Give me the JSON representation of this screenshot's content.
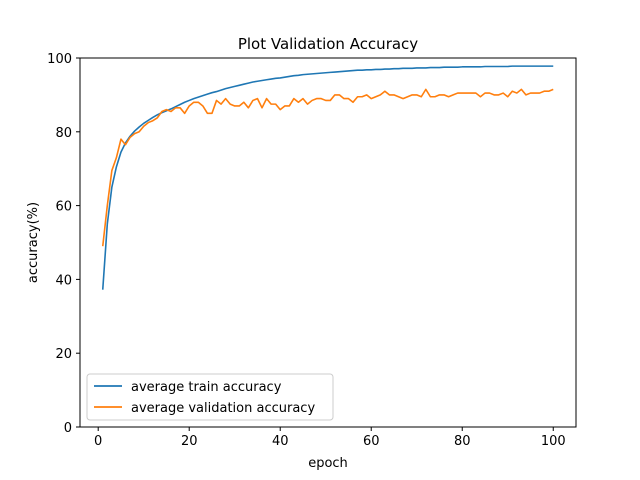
{
  "chart_data": {
    "type": "line",
    "title": "Plot Validation Accuracy",
    "xlabel": "epoch",
    "ylabel": "accuracy(%)",
    "xlim": [
      -4,
      105
    ],
    "ylim": [
      0,
      100
    ],
    "xticks": [
      0,
      20,
      40,
      60,
      80,
      100
    ],
    "yticks": [
      0,
      20,
      40,
      60,
      80,
      100
    ],
    "grid": false,
    "legend_position": "bottom-left",
    "series": [
      {
        "name": "average train accuracy",
        "color": "#1f77b4",
        "x": [
          1,
          2,
          3,
          4,
          5,
          6,
          7,
          8,
          9,
          10,
          11,
          12,
          13,
          14,
          15,
          16,
          17,
          18,
          19,
          20,
          21,
          22,
          23,
          24,
          25,
          26,
          27,
          28,
          29,
          30,
          31,
          32,
          33,
          34,
          35,
          36,
          37,
          38,
          39,
          40,
          41,
          42,
          43,
          44,
          45,
          46,
          47,
          48,
          49,
          50,
          51,
          52,
          53,
          54,
          55,
          56,
          57,
          58,
          59,
          60,
          61,
          62,
          63,
          64,
          65,
          66,
          67,
          68,
          69,
          70,
          71,
          72,
          73,
          74,
          75,
          76,
          77,
          78,
          79,
          80,
          81,
          82,
          83,
          84,
          85,
          86,
          87,
          88,
          89,
          90,
          91,
          92,
          93,
          94,
          95,
          96,
          97,
          98,
          99,
          100
        ],
        "values": [
          37.2,
          55.0,
          65.0,
          70.5,
          74.5,
          77.0,
          78.8,
          80.2,
          81.3,
          82.3,
          83.1,
          83.9,
          84.6,
          85.2,
          85.7,
          86.2,
          86.8,
          87.4,
          88.0,
          88.5,
          89.0,
          89.4,
          89.8,
          90.2,
          90.6,
          90.9,
          91.3,
          91.7,
          92.0,
          92.3,
          92.6,
          92.9,
          93.2,
          93.5,
          93.7,
          93.9,
          94.1,
          94.3,
          94.5,
          94.6,
          94.8,
          95.0,
          95.2,
          95.3,
          95.5,
          95.6,
          95.7,
          95.8,
          95.9,
          96.0,
          96.1,
          96.2,
          96.3,
          96.4,
          96.5,
          96.6,
          96.7,
          96.7,
          96.8,
          96.8,
          96.9,
          96.9,
          97.0,
          97.0,
          97.1,
          97.1,
          97.2,
          97.2,
          97.2,
          97.3,
          97.3,
          97.3,
          97.4,
          97.4,
          97.4,
          97.5,
          97.5,
          97.5,
          97.5,
          97.6,
          97.6,
          97.6,
          97.6,
          97.6,
          97.7,
          97.7,
          97.7,
          97.7,
          97.7,
          97.7,
          97.8,
          97.8,
          97.8,
          97.8,
          97.8,
          97.8,
          97.8,
          97.8,
          97.8,
          97.8
        ]
      },
      {
        "name": "average validation accuracy",
        "color": "#ff7f0e",
        "x": [
          1,
          2,
          3,
          4,
          5,
          6,
          7,
          8,
          9,
          10,
          11,
          12,
          13,
          14,
          15,
          16,
          17,
          18,
          19,
          20,
          21,
          22,
          23,
          24,
          25,
          26,
          27,
          28,
          29,
          30,
          31,
          32,
          33,
          34,
          35,
          36,
          37,
          38,
          39,
          40,
          41,
          42,
          43,
          44,
          45,
          46,
          47,
          48,
          49,
          50,
          51,
          52,
          53,
          54,
          55,
          56,
          57,
          58,
          59,
          60,
          61,
          62,
          63,
          64,
          65,
          66,
          67,
          68,
          69,
          70,
          71,
          72,
          73,
          74,
          75,
          76,
          77,
          78,
          79,
          80,
          81,
          82,
          83,
          84,
          85,
          86,
          87,
          88,
          89,
          90,
          91,
          92,
          93,
          94,
          95,
          96,
          97,
          98,
          99,
          100
        ],
        "values": [
          49.0,
          60.0,
          69.5,
          73.0,
          78.0,
          76.5,
          78.5,
          79.5,
          80.0,
          81.5,
          82.5,
          83.0,
          83.8,
          85.5,
          86.0,
          85.5,
          86.5,
          86.5,
          85.0,
          87.0,
          88.0,
          88.0,
          87.0,
          85.0,
          85.0,
          88.5,
          87.5,
          89.0,
          87.5,
          87.0,
          87.0,
          88.0,
          86.5,
          88.5,
          89.0,
          86.5,
          89.0,
          87.5,
          87.5,
          86.0,
          87.0,
          87.0,
          89.0,
          88.0,
          89.0,
          87.5,
          88.5,
          89.0,
          89.0,
          88.5,
          88.5,
          90.0,
          90.0,
          89.0,
          89.0,
          88.0,
          89.5,
          89.5,
          90.0,
          89.0,
          89.5,
          90.0,
          91.0,
          90.0,
          90.0,
          89.5,
          89.0,
          89.5,
          90.0,
          90.0,
          89.5,
          91.5,
          89.5,
          89.5,
          90.0,
          90.0,
          89.5,
          90.0,
          90.5,
          90.5,
          90.5,
          90.5,
          90.5,
          89.5,
          90.5,
          90.5,
          90.0,
          90.0,
          90.5,
          89.5,
          91.0,
          90.5,
          91.5,
          90.0,
          90.5,
          90.5,
          90.5,
          91.0,
          91.0,
          91.5
        ]
      }
    ]
  }
}
